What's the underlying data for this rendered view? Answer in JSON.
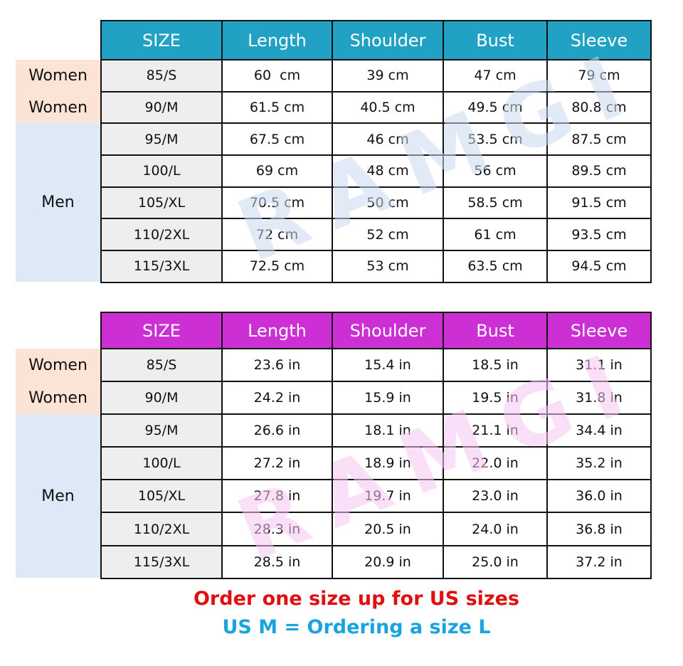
{
  "watermark": "RAMGI",
  "colors": {
    "cm_header": "#21a2c4",
    "in_header": "#cc2fd3",
    "women_bg": "#fbe3d6",
    "men_bg": "#dde9f6",
    "note_red": "#e01010",
    "note_blue": "#1aa3e0"
  },
  "groups": {
    "women": "Women",
    "men": "Men"
  },
  "cm_table": {
    "headers": [
      "SIZE",
      "Length",
      "Shoulder",
      "Bust",
      "Sleeve"
    ],
    "rows": [
      [
        "85/S",
        "60  cm",
        "39 cm",
        "47 cm",
        "79 cm"
      ],
      [
        "90/M",
        "61.5 cm",
        "40.5 cm",
        "49.5 cm",
        "80.8 cm"
      ],
      [
        "95/M",
        "67.5 cm",
        "46 cm",
        "53.5 cm",
        "87.5 cm"
      ],
      [
        "100/L",
        "69 cm",
        "48 cm",
        "56 cm",
        "89.5 cm"
      ],
      [
        "105/XL",
        "70.5 cm",
        "50 cm",
        "58.5 cm",
        "91.5 cm"
      ],
      [
        "110/2XL",
        "72 cm",
        "52 cm",
        "61 cm",
        "93.5 cm"
      ],
      [
        "115/3XL",
        "72.5 cm",
        "53 cm",
        "63.5 cm",
        "94.5 cm"
      ]
    ]
  },
  "in_table": {
    "headers": [
      "SIZE",
      "Length",
      "Shoulder",
      "Bust",
      "Sleeve"
    ],
    "rows": [
      [
        "85/S",
        "23.6 in",
        "15.4 in",
        "18.5 in",
        "31.1 in"
      ],
      [
        "90/M",
        "24.2 in",
        "15.9 in",
        "19.5 in",
        "31.8 in"
      ],
      [
        "95/M",
        "26.6 in",
        "18.1 in",
        "21.1 in",
        "34.4 in"
      ],
      [
        "100/L",
        "27.2 in",
        "18.9 in",
        "22.0 in",
        "35.2 in"
      ],
      [
        "105/XL",
        "27.8 in",
        "19.7 in",
        "23.0 in",
        "36.0 in"
      ],
      [
        "110/2XL",
        "28.3 in",
        "20.5 in",
        "24.0 in",
        "36.8 in"
      ],
      [
        "115/3XL",
        "28.5 in",
        "20.9 in",
        "25.0 in",
        "37.2 in"
      ]
    ]
  },
  "notes": {
    "line1": "Order one size up for US sizes",
    "line2": "US M = Ordering a size L"
  }
}
